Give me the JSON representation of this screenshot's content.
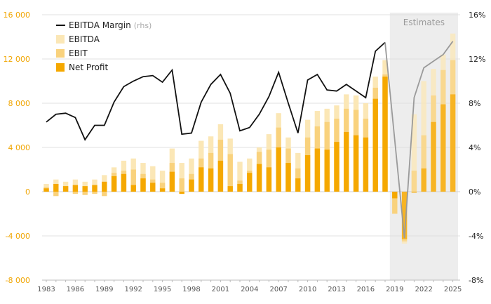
{
  "chart_data": {
    "type": "bar",
    "estimates_label": "Estimates",
    "estimates_from": 2019,
    "x": [
      1983,
      1984,
      1985,
      1986,
      1987,
      1988,
      1989,
      1990,
      1991,
      1992,
      1993,
      1994,
      1995,
      1996,
      1997,
      1998,
      1999,
      2000,
      2001,
      2002,
      2003,
      2004,
      2005,
      2006,
      2007,
      2008,
      2009,
      2010,
      2011,
      2012,
      2013,
      2014,
      2015,
      2016,
      2017,
      2018,
      2019,
      2020,
      2021,
      2022,
      2023,
      2024,
      2025
    ],
    "x_ticks": [
      "1983",
      "1986",
      "1989",
      "1992",
      "1995",
      "1998",
      "2001",
      "2004",
      "2007",
      "2010",
      "2013",
      "2016",
      "2019",
      "2022",
      "2025"
    ],
    "y_left_ticks": [
      "-8 000",
      "-4 000",
      "0",
      "4 000",
      "8 000",
      "12 000",
      "16 000"
    ],
    "y_right_ticks": [
      "-8%",
      "-4%",
      "0%",
      "4%",
      "8%",
      "12%",
      "16%"
    ],
    "ylim_left": [
      -8000,
      16000
    ],
    "ylim_right": [
      -8,
      16
    ],
    "series": [
      {
        "name": "EBITDA",
        "color": "#fbe7b6",
        "values": [
          700,
          1100,
          900,
          1100,
          900,
          1100,
          1500,
          2200,
          2800,
          3000,
          2600,
          2300,
          1900,
          3900,
          2600,
          3000,
          4600,
          5000,
          6100,
          4800,
          2700,
          3000,
          4000,
          5200,
          7100,
          4900,
          3500,
          6500,
          7300,
          7500,
          7800,
          8800,
          8700,
          8000,
          10400,
          11900,
          null,
          -4700,
          7000,
          10000,
          11100,
          12400,
          14300
        ]
      },
      {
        "name": "EBIT",
        "color": "#f9d27d",
        "values": [
          400,
          -400,
          500,
          -200,
          -300,
          -200,
          -400,
          1700,
          1900,
          2000,
          1600,
          1100,
          800,
          2600,
          1200,
          1600,
          3000,
          3500,
          4700,
          3400,
          1000,
          1900,
          3600,
          3800,
          5800,
          3900,
          2100,
          4900,
          5900,
          6300,
          6600,
          7500,
          7400,
          6600,
          9400,
          10600,
          -2000,
          -4500,
          1900,
          5100,
          8700,
          11000,
          11900
        ]
      },
      {
        "name": "Net Profit",
        "color": "#f5a800",
        "values": [
          300,
          700,
          500,
          600,
          500,
          600,
          900,
          1400,
          1600,
          600,
          1200,
          800,
          300,
          1800,
          -200,
          1100,
          2200,
          2100,
          2800,
          500,
          700,
          1700,
          2500,
          2200,
          4000,
          2600,
          1200,
          3300,
          3900,
          3800,
          4500,
          5400,
          5100,
          4900,
          8400,
          10400,
          -600,
          -4300,
          -100,
          2100,
          6300,
          7900,
          8800
        ]
      },
      {
        "name": "EBITDA Margin (rhs)",
        "color": "#111111",
        "values": [
          6.3,
          7.0,
          7.1,
          6.7,
          4.7,
          6.0,
          6.0,
          8.1,
          9.5,
          10.0,
          10.4,
          10.5,
          9.9,
          11.0,
          5.2,
          5.3,
          8.1,
          9.7,
          10.6,
          8.9,
          5.5,
          5.8,
          7.0,
          8.6,
          10.8,
          8.0,
          5.3,
          10.1,
          10.6,
          9.2,
          9.1,
          9.7,
          9.1,
          8.5,
          12.7,
          13.5,
          null,
          -4.2,
          8.5,
          11.2,
          11.8,
          12.4,
          13.6
        ]
      }
    ],
    "legend": [
      {
        "label": "EBITDA Margin",
        "sub": "(rhs)",
        "kind": "line",
        "color": "#111111"
      },
      {
        "label": "EBITDA",
        "sub": "",
        "kind": "box",
        "color": "#fbe7b6"
      },
      {
        "label": "EBIT",
        "sub": "",
        "kind": "box",
        "color": "#f9d27d"
      },
      {
        "label": "Net Profit",
        "sub": "",
        "kind": "box",
        "color": "#f5a800"
      }
    ],
    "legend_position": "top-left",
    "grid": "horizontal",
    "colors": {
      "left_axis": "#f0a500",
      "estimate_shade": "#ededed",
      "estimate_line": "#9a9a9a",
      "grid": "#e0e0e0"
    }
  }
}
